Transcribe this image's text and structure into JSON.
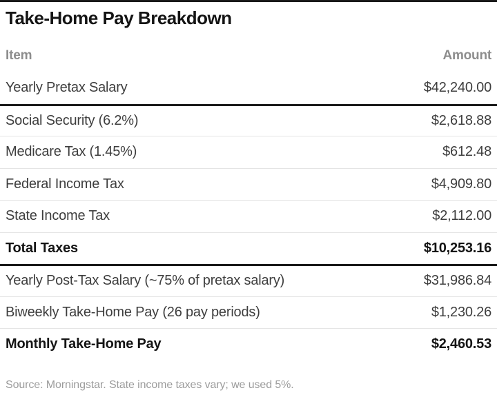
{
  "chart_data": {
    "type": "table",
    "title": "Take-Home Pay Breakdown",
    "columns": [
      "Item",
      "Amount"
    ],
    "rows": [
      {
        "label": "Yearly Pretax Salary",
        "amount": "$42,240.00",
        "emphasis": false
      },
      {
        "label": "Social Security (6.2%)",
        "amount": "$2,618.88",
        "emphasis": false
      },
      {
        "label": "Medicare Tax (1.45%)",
        "amount": "$612.48",
        "emphasis": false
      },
      {
        "label": "Federal Income Tax",
        "amount": "$4,909.80",
        "emphasis": false
      },
      {
        "label": "State Income Tax",
        "amount": "$2,112.00",
        "emphasis": false
      },
      {
        "label": "Total Taxes",
        "amount": "$10,253.16",
        "emphasis": true
      },
      {
        "label": "Yearly Post-Tax Salary (~75% of pretax salary)",
        "amount": "$31,986.84",
        "emphasis": false
      },
      {
        "label": "Biweekly Take-Home Pay (26 pay periods)",
        "amount": "$1,230.26",
        "emphasis": false
      },
      {
        "label": "Monthly Take-Home Pay",
        "amount": "$2,460.53",
        "emphasis": true
      }
    ],
    "source": "Source: Morningstar. State income taxes vary; we used 5%.",
    "colors": {
      "top_rule": "#1a1a1a",
      "thick_rule": "#1a1a1a",
      "thin_rule": "#e4e4e4",
      "title_text": "#141414",
      "header_text": "#8d8d8d",
      "body_text": "#3e3e3e",
      "source_text": "#9c9c9c",
      "background": "#ffffff"
    }
  }
}
